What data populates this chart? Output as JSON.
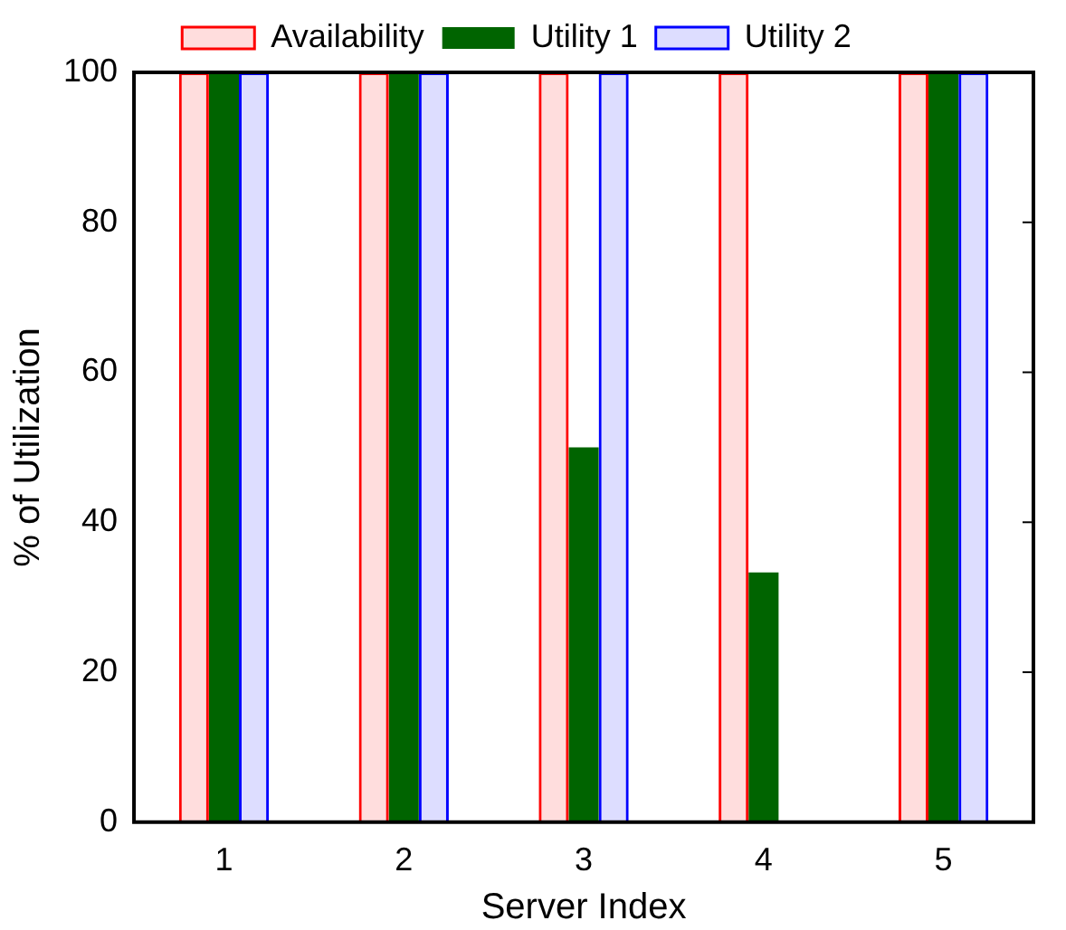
{
  "chart_data": {
    "type": "bar",
    "xlabel": "Server Index",
    "ylabel": "% of Utilization",
    "categories": [
      "1",
      "2",
      "3",
      "4",
      "5"
    ],
    "series": [
      {
        "name": "Availability",
        "color": "#ff0000",
        "values": [
          100,
          100,
          100,
          100,
          100
        ]
      },
      {
        "name": "Utility 1",
        "color": "#006400",
        "values": [
          100,
          100,
          50,
          33.3,
          100
        ]
      },
      {
        "name": "Utility 2",
        "color": "#0000ff",
        "values": [
          100,
          100,
          100,
          0,
          100
        ]
      }
    ],
    "ylim": [
      0,
      100
    ],
    "yticks": [
      0,
      20,
      40,
      60,
      80,
      100
    ],
    "grid": false,
    "legend": "top"
  }
}
